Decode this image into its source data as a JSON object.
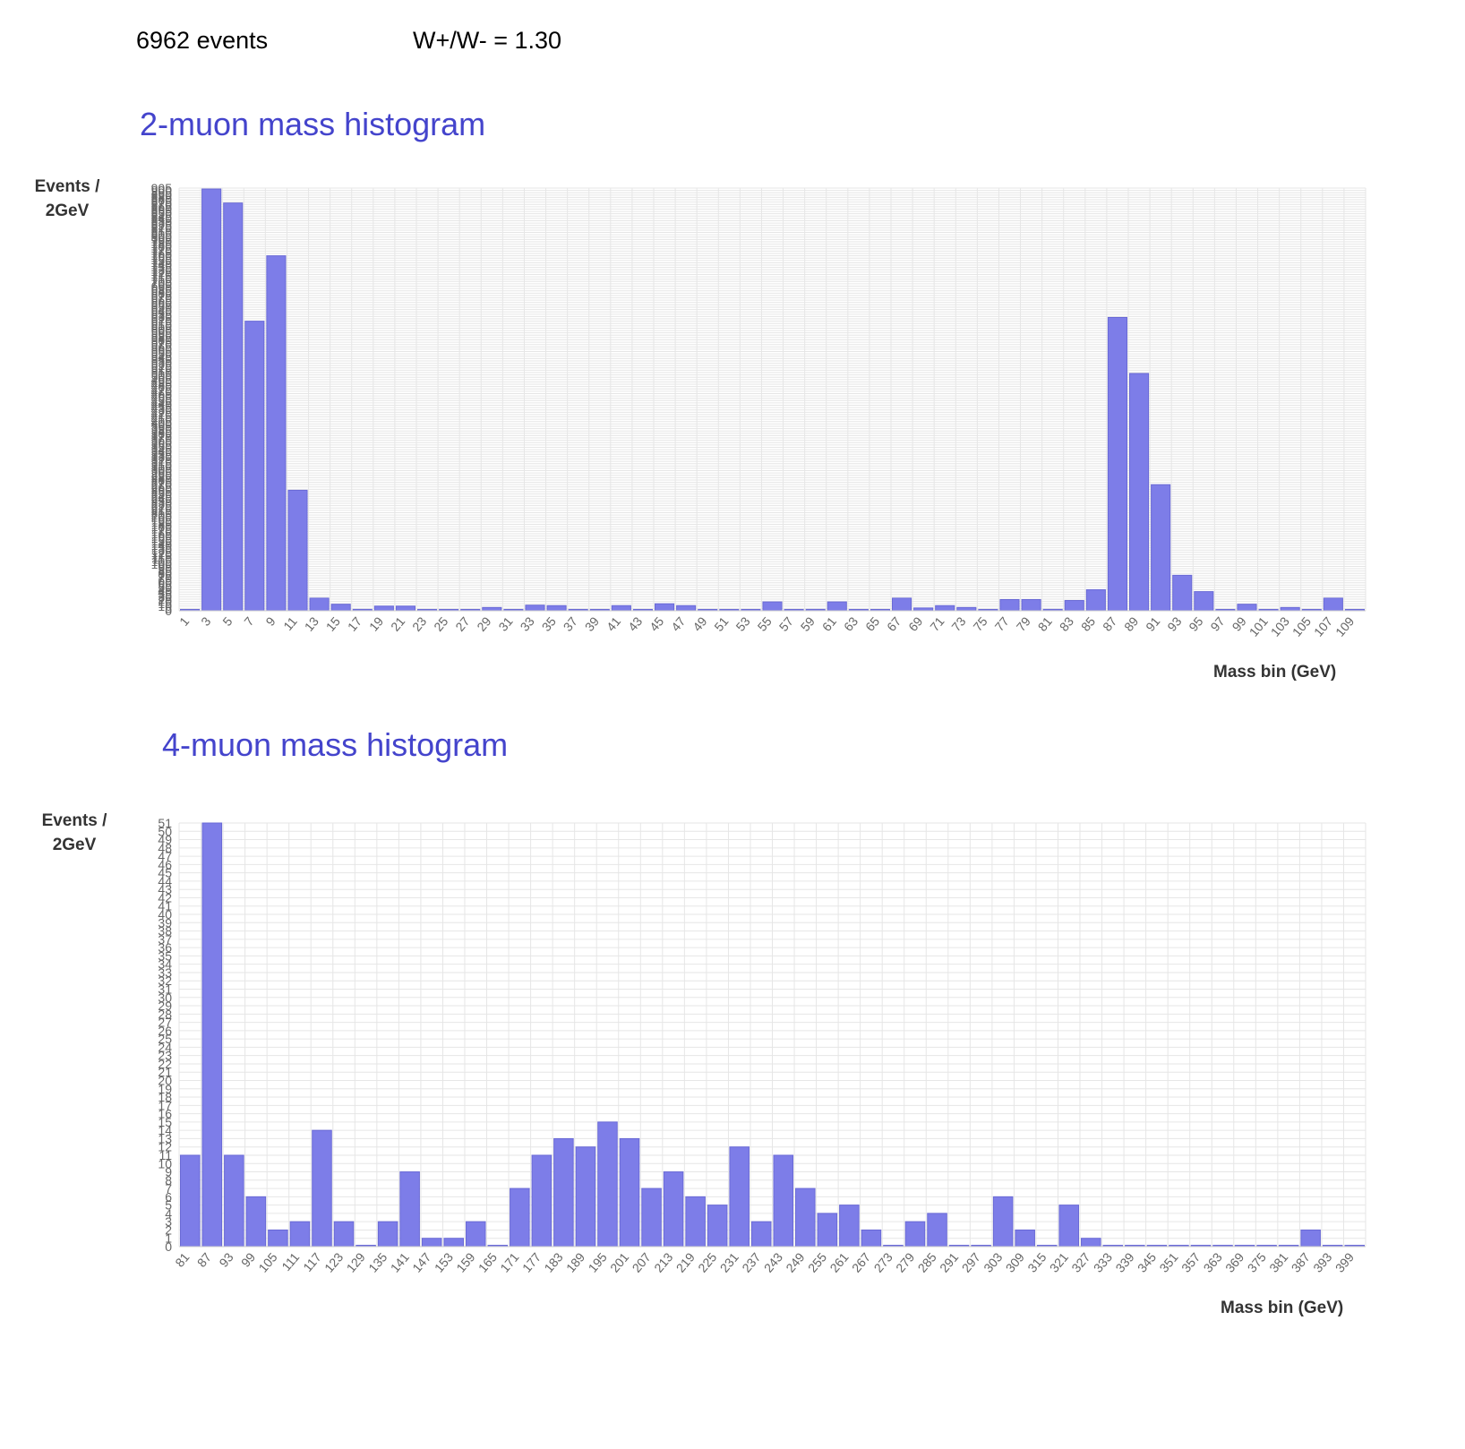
{
  "summary": {
    "events": "6962 events",
    "ratio": "W+/W- = 1.30"
  },
  "colors": {
    "bar_fill": "#7d7de8",
    "bar_stroke": "#6a6ad6",
    "title": "#4444cc",
    "grid": "#e6e6e6"
  },
  "chart_data": [
    {
      "type": "bar",
      "title": "2-muon mass histogram",
      "ylabel": "Events /\n2GeV",
      "xlabel": "Mass bin (GeV)",
      "ylim": [
        0,
        905
      ],
      "grid": true,
      "y_tick_step": 5,
      "categories": [
        "1",
        "3",
        "5",
        "7",
        "9",
        "11",
        "13",
        "15",
        "17",
        "19",
        "21",
        "23",
        "25",
        "27",
        "29",
        "31",
        "33",
        "35",
        "37",
        "39",
        "41",
        "43",
        "45",
        "47",
        "49",
        "51",
        "53",
        "55",
        "57",
        "59",
        "61",
        "63",
        "65",
        "67",
        "69",
        "71",
        "73",
        "75",
        "77",
        "79",
        "81",
        "83",
        "85",
        "87",
        "89",
        "91",
        "93",
        "95",
        "97",
        "99",
        "101",
        "103",
        "105",
        "107",
        "109"
      ],
      "values": [
        2,
        903,
        873,
        620,
        760,
        258,
        27,
        14,
        3,
        10,
        10,
        1,
        2,
        1,
        7,
        1,
        12,
        11,
        1,
        1,
        11,
        2,
        15,
        11,
        2,
        0,
        0,
        19,
        1,
        3,
        19,
        2,
        1,
        27,
        6,
        11,
        7,
        2,
        24,
        24,
        3,
        22,
        45,
        628,
        508,
        270,
        76,
        41,
        0,
        14,
        0,
        7,
        1,
        27,
        2
      ]
    },
    {
      "type": "bar",
      "title": "4-muon mass histogram",
      "ylabel": "Events /\n2GeV",
      "xlabel": "Mass bin (GeV)",
      "ylim": [
        0,
        51
      ],
      "grid": true,
      "y_tick_step": 1,
      "categories": [
        "81",
        "87",
        "93",
        "99",
        "105",
        "111",
        "117",
        "123",
        "129",
        "135",
        "141",
        "147",
        "153",
        "159",
        "165",
        "171",
        "177",
        "183",
        "189",
        "195",
        "201",
        "207",
        "213",
        "219",
        "225",
        "231",
        "237",
        "243",
        "249",
        "255",
        "261",
        "267",
        "273",
        "279",
        "285",
        "291",
        "297",
        "303",
        "309",
        "315",
        "321",
        "327",
        "333",
        "339",
        "345",
        "351",
        "357",
        "363",
        "369",
        "375",
        "381",
        "387",
        "393",
        "399"
      ],
      "values": [
        11,
        51,
        11,
        6,
        2,
        3,
        14,
        3,
        0,
        3,
        9,
        1,
        1,
        3,
        0,
        7,
        11,
        13,
        12,
        15,
        13,
        7,
        9,
        6,
        5,
        12,
        3,
        11,
        7,
        4,
        5,
        2,
        0,
        3,
        4,
        0,
        0,
        6,
        2,
        0,
        5,
        1,
        0,
        0,
        0,
        0,
        0,
        0,
        0,
        0,
        0,
        2,
        0,
        0
      ]
    }
  ]
}
